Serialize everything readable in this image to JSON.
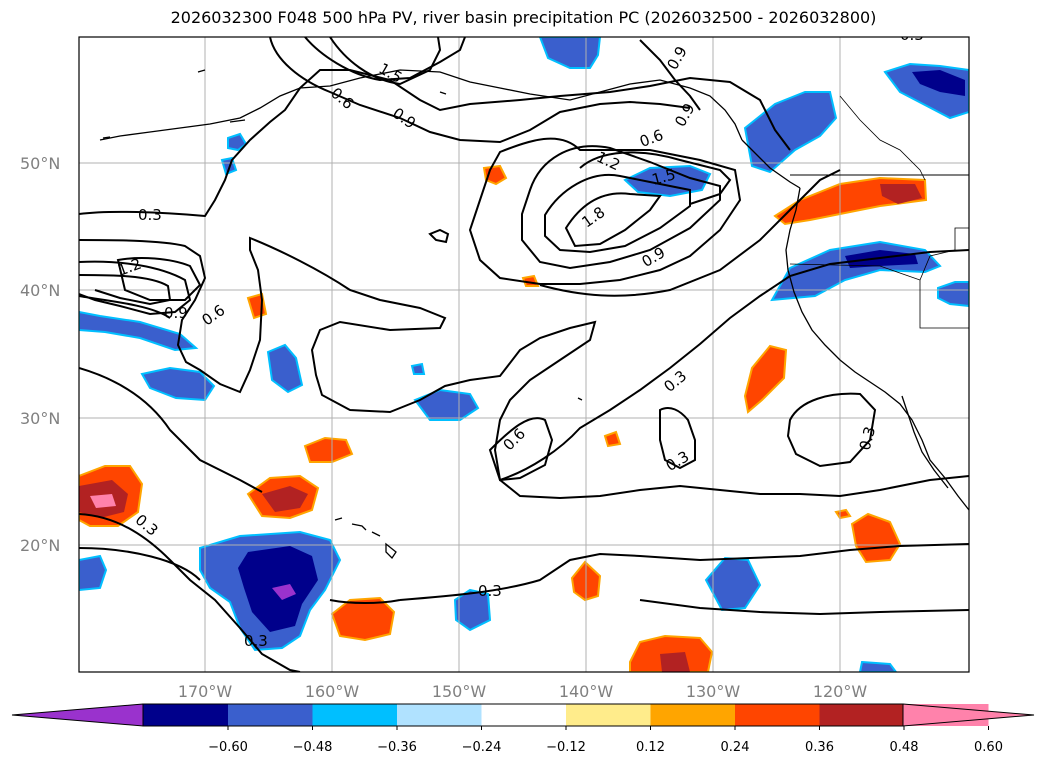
{
  "title": "2026032300 F048 500 hPa PV, river basin precipitation PC (2026032500 - 2026032800)",
  "axes": {
    "lat_labels": [
      "50°N",
      "40°N",
      "30°N",
      "20°N"
    ],
    "lon_labels": [
      "170°W",
      "160°W",
      "150°W",
      "140°W",
      "130°W",
      "120°W"
    ]
  },
  "contour_labels": [
    "1.5",
    "0.9",
    "0.6",
    "0.9",
    "0.6",
    "1.2",
    "1.5",
    "1.8",
    "0.9",
    "0.3",
    "1.2",
    "0.9",
    "0.6",
    "0.3",
    "0.6",
    "0.3",
    "0.3",
    "0.3",
    "0.3",
    "0.3",
    "0.3",
    "0.9"
  ],
  "colorbar": {
    "ticks": [
      "−0.60",
      "−0.48",
      "−0.36",
      "−0.24",
      "−0.12",
      "0.12",
      "0.24",
      "0.36",
      "0.48",
      "0.60"
    ],
    "colors": [
      "#9a32cd",
      "#00008b",
      "#3a5fcd",
      "#00bfff",
      "#b0e2ff",
      "#ffffff",
      "#ffec8b",
      "#ffa500",
      "#ff4500",
      "#b22222",
      "#ff82ab"
    ],
    "min_color": "#9a32cd",
    "max_color": "#ff82ab"
  },
  "colors": {
    "contour": "#000000",
    "grid": "#b0b0b0",
    "coast": "#000000"
  }
}
